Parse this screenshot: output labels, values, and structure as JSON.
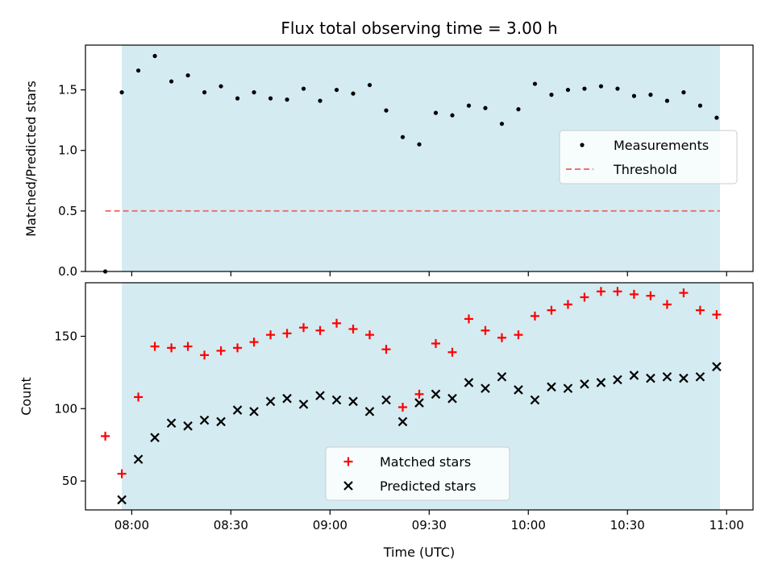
{
  "figure": {
    "title": "Flux total observing time = 3.00 h",
    "xlabel": "Time (UTC)",
    "x_tick_labels": [
      "08:00",
      "08:30",
      "09:00",
      "09:30",
      "10:00",
      "10:30",
      "11:00"
    ]
  },
  "chart_data": [
    {
      "type": "scatter",
      "id": "top",
      "ylabel": "Matched/Predicted stars",
      "xlim": [
        "07:46",
        "11:08"
      ],
      "ylim": [
        0,
        1.87
      ],
      "y_ticks": [
        0.0,
        0.5,
        1.0,
        1.5
      ],
      "y_tick_labels": [
        "0.0",
        "0.5",
        "1.0",
        "1.5"
      ],
      "shaded_span": [
        "07:57",
        "10:58"
      ],
      "shade_color": "#d4ebf1",
      "legend_position": "right",
      "series": [
        {
          "name": "Measurements",
          "marker": "dot",
          "color": "#000000",
          "x": [
            "07:52",
            "07:57",
            "08:02",
            "08:07",
            "08:12",
            "08:17",
            "08:22",
            "08:27",
            "08:32",
            "08:37",
            "08:42",
            "08:47",
            "08:52",
            "08:57",
            "09:02",
            "09:07",
            "09:12",
            "09:17",
            "09:22",
            "09:27",
            "09:32",
            "09:37",
            "09:42",
            "09:47",
            "09:52",
            "09:57",
            "10:02",
            "10:07",
            "10:12",
            "10:17",
            "10:22",
            "10:27",
            "10:32",
            "10:37",
            "10:42",
            "10:47",
            "10:52",
            "10:57"
          ],
          "y": [
            0.0,
            1.48,
            1.66,
            1.78,
            1.57,
            1.62,
            1.48,
            1.53,
            1.43,
            1.48,
            1.43,
            1.42,
            1.51,
            1.41,
            1.5,
            1.47,
            1.54,
            1.33,
            1.11,
            1.05,
            1.31,
            1.29,
            1.37,
            1.35,
            1.22,
            1.34,
            1.55,
            1.46,
            1.5,
            1.51,
            1.53,
            1.51,
            1.45,
            1.46,
            1.41,
            1.48,
            1.37,
            1.27
          ]
        },
        {
          "name": "Threshold",
          "type": "line",
          "style": "dashed",
          "color": "#f07070",
          "x": [
            "07:52",
            "10:58"
          ],
          "y": [
            0.5,
            0.5
          ]
        }
      ]
    },
    {
      "type": "scatter",
      "id": "bottom",
      "ylabel": "Count",
      "xlim": [
        "07:46",
        "11:08"
      ],
      "ylim": [
        30,
        187
      ],
      "y_ticks": [
        50,
        100,
        150
      ],
      "y_tick_labels": [
        "50",
        "100",
        "150"
      ],
      "shaded_span": [
        "07:57",
        "10:58"
      ],
      "shade_color": "#d4ebf1",
      "legend_position": "lower center",
      "series": [
        {
          "name": "Matched stars",
          "marker": "plus",
          "color": "#ff0000",
          "x": [
            "07:52",
            "07:57",
            "08:02",
            "08:07",
            "08:12",
            "08:17",
            "08:22",
            "08:27",
            "08:32",
            "08:37",
            "08:42",
            "08:47",
            "08:52",
            "08:57",
            "09:02",
            "09:07",
            "09:12",
            "09:17",
            "09:22",
            "09:27",
            "09:32",
            "09:37",
            "09:42",
            "09:47",
            "09:52",
            "09:57",
            "10:02",
            "10:07",
            "10:12",
            "10:17",
            "10:22",
            "10:27",
            "10:32",
            "10:37",
            "10:42",
            "10:47",
            "10:52",
            "10:57"
          ],
          "y": [
            81,
            55,
            108,
            143,
            142,
            143,
            137,
            140,
            142,
            146,
            151,
            152,
            156,
            154,
            159,
            155,
            151,
            141,
            101,
            110,
            145,
            139,
            162,
            154,
            149,
            151,
            164,
            168,
            172,
            177,
            181,
            181,
            179,
            178,
            172,
            180,
            168,
            165
          ]
        },
        {
          "name": "Predicted stars",
          "marker": "x",
          "color": "#000000",
          "x": [
            "07:57",
            "08:02",
            "08:07",
            "08:12",
            "08:17",
            "08:22",
            "08:27",
            "08:32",
            "08:37",
            "08:42",
            "08:47",
            "08:52",
            "08:57",
            "09:02",
            "09:07",
            "09:12",
            "09:17",
            "09:22",
            "09:27",
            "09:32",
            "09:37",
            "09:42",
            "09:47",
            "09:52",
            "09:57",
            "10:02",
            "10:07",
            "10:12",
            "10:17",
            "10:22",
            "10:27",
            "10:32",
            "10:37",
            "10:42",
            "10:47",
            "10:52",
            "10:57"
          ],
          "y": [
            37,
            65,
            80,
            90,
            88,
            92,
            91,
            99,
            98,
            105,
            107,
            103,
            109,
            106,
            105,
            98,
            106,
            91,
            104,
            110,
            107,
            118,
            114,
            122,
            113,
            106,
            115,
            114,
            117,
            118,
            120,
            123,
            121,
            122,
            121,
            122,
            129
          ]
        }
      ]
    }
  ]
}
